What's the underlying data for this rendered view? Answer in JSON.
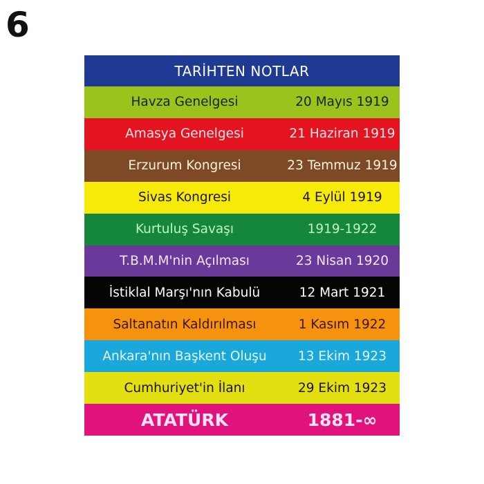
{
  "badge": "6",
  "poster": {
    "title": "TARİHTEN NOTLAR",
    "title_bg": "#1f3a93",
    "rows": [
      {
        "name": "Havza Genelgesi",
        "date": "20 Mayıs 1919",
        "bg": "#9cc31c",
        "fg": "#16240a"
      },
      {
        "name": "Amasya Genelgesi",
        "date": "21 Haziran 1919",
        "bg": "#e3141f",
        "fg": "#ffe6ee"
      },
      {
        "name": "Erzurum Kongresi",
        "date": "23 Temmuz 1919",
        "bg": "#7e4a25",
        "fg": "#fff3e0"
      },
      {
        "name": "Sivas Kongresi",
        "date": "4 Eylül 1919",
        "bg": "#f7ea08",
        "fg": "#1a1400"
      },
      {
        "name": "Kurtuluş Savaşı",
        "date": "1919-1922",
        "bg": "#14873a",
        "fg": "#c2f7c0"
      },
      {
        "name": "T.B.M.M'nin Açılması",
        "date": "23 Nisan 1920",
        "bg": "#6a3a9a",
        "fg": "#f0e6ff"
      },
      {
        "name": "İstiklal Marşı'nın Kabulü",
        "date": "12 Mart 1921",
        "bg": "#050505",
        "fg": "#ffffff"
      },
      {
        "name": "Saltanatın Kaldırılması",
        "date": "1 Kasım 1922",
        "bg": "#f5930f",
        "fg": "#3e1406"
      },
      {
        "name": "Ankara'nın Başkent Oluşu",
        "date": "13 Ekim 1923",
        "bg": "#1aa8da",
        "fg": "#e6f6ff"
      },
      {
        "name": "Cumhuriyet'in İlanı",
        "date": "29 Ekim 1923",
        "bg": "#e4df10",
        "fg": "#1a1400"
      },
      {
        "name": "ATATÜRK",
        "date": "1881-∞",
        "bg": "#e0137c",
        "fg": "#ffe0f2"
      }
    ]
  }
}
